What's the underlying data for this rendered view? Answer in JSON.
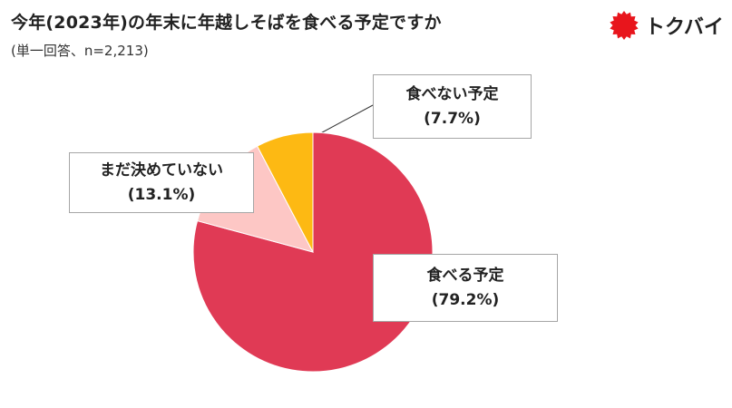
{
  "header": {
    "title": "今年(2023年)の年末に年越しそばを食べる予定ですか",
    "subtitle": "(単一回答、n=2,213)",
    "logo_text": "トクバイ"
  },
  "chart_data": {
    "type": "pie",
    "title": "今年(2023年)の年末に年越しそばを食べる予定ですか",
    "subtitle": "(単一回答、n=2,213)",
    "series": [
      {
        "name": "食べる予定",
        "value": 79.2,
        "value_label": "(79.2%)",
        "color": "#e03a55"
      },
      {
        "name": "まだ決めていない",
        "value": 13.1,
        "value_label": "(13.1%)",
        "color": "#fdc7c5"
      },
      {
        "name": "食べない予定",
        "value": 7.7,
        "value_label": "(7.7%)",
        "color": "#fdb913"
      }
    ]
  },
  "colors": {
    "logo_red": "#e8151c",
    "border": "#a6a6a6"
  }
}
